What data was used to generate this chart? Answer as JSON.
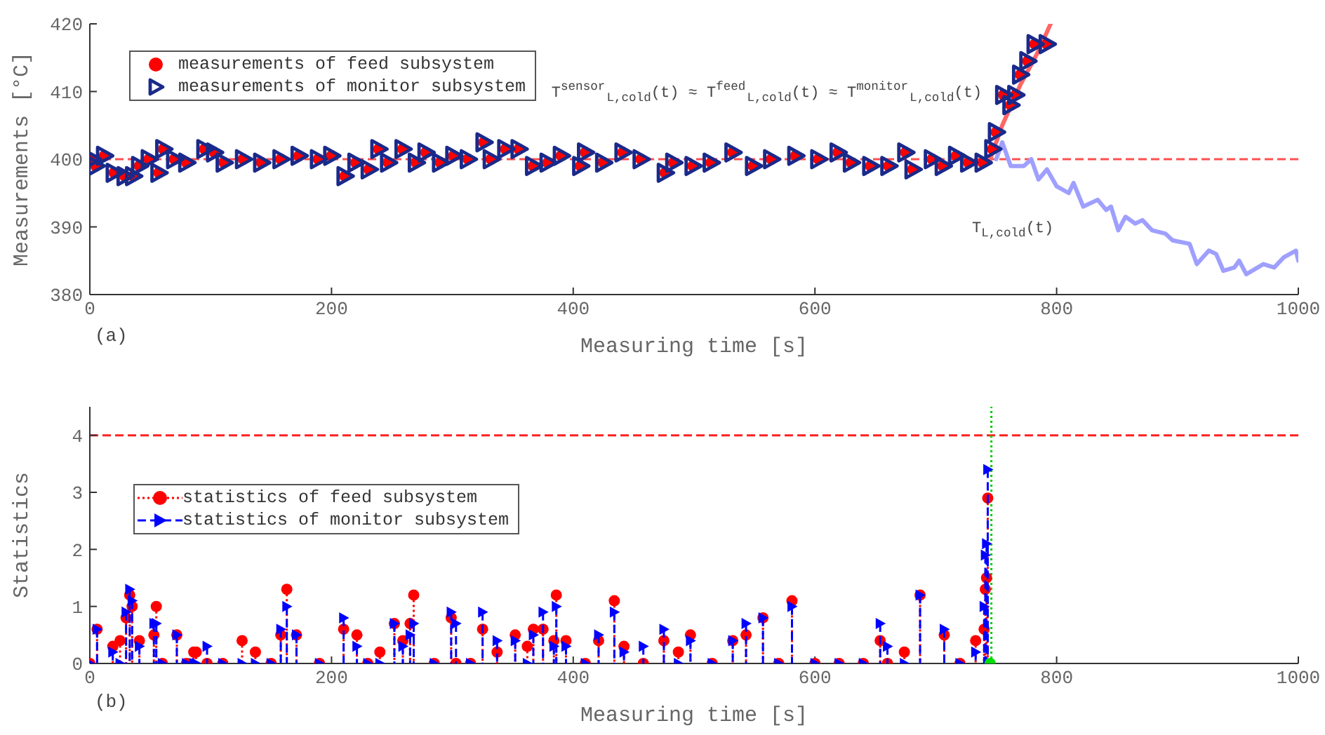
{
  "chart_data": [
    {
      "type": "scatter",
      "xlabel": "Measuring time [s]",
      "ylabel": "Measurements [°C]",
      "xlim": [
        0,
        1000
      ],
      "ylim": [
        380,
        420
      ],
      "xticks": [
        0,
        200,
        400,
        600,
        800,
        1000
      ],
      "yticks": [
        380,
        390,
        400,
        410,
        420
      ],
      "legend": "top left",
      "x": [
        2,
        5,
        12,
        20,
        29,
        36,
        41,
        49,
        57,
        61,
        70,
        80,
        95,
        103,
        111,
        127,
        142,
        158,
        173,
        189,
        200,
        211,
        220,
        231,
        239,
        247,
        259,
        270,
        278,
        290,
        301,
        313,
        326,
        332,
        344,
        355,
        367,
        379,
        390,
        406,
        410,
        425,
        441,
        456,
        476,
        483,
        499,
        514,
        532,
        549,
        564,
        584,
        603,
        619,
        630,
        646,
        661,
        675,
        681,
        697,
        706,
        717,
        727,
        739,
        747,
        750,
        756,
        762,
        766,
        770,
        776,
        782,
        792
      ],
      "series": [
        {
          "type": "line",
          "color": "#ff6666",
          "x": [
            745,
            755,
            770,
            785,
            795
          ],
          "values": [
            400,
            405,
            411,
            416,
            420
          ]
        },
        {
          "type": "line",
          "color": "#9f9fff",
          "x": [
            750,
            755,
            762,
            773,
            779,
            785,
            792,
            800,
            810,
            814,
            822,
            834,
            841,
            845,
            851,
            857,
            865,
            871,
            879,
            890,
            896,
            910,
            916,
            926,
            932,
            938,
            947,
            951,
            957,
            971,
            980,
            988,
            998,
            1000
          ],
          "values": [
            400,
            402.5,
            399,
            399,
            400,
            397,
            398.5,
            396,
            395,
            396.5,
            393,
            394,
            392.5,
            393,
            389.5,
            391.5,
            390.5,
            391,
            389.5,
            389,
            388,
            387.5,
            384.5,
            386.5,
            386,
            383.5,
            384,
            385,
            383,
            384.5,
            384,
            385.5,
            386.5,
            385
          ]
        },
        {
          "name": "measurements of feed subsystem",
          "color": "#ff0000",
          "marker": "circle",
          "values": [
            400,
            399,
            400.5,
            398,
            397.5,
            397.5,
            399,
            400,
            398,
            401.5,
            400,
            399.5,
            401.5,
            401,
            399.5,
            400,
            399.5,
            400,
            400.5,
            400,
            400.5,
            397.5,
            399.5,
            398.5,
            401.5,
            399.5,
            401.5,
            399.5,
            401,
            399.5,
            400.5,
            400,
            402.5,
            400,
            401.5,
            401.5,
            399,
            399.5,
            400.5,
            399,
            401,
            399.5,
            401,
            400,
            398,
            399.5,
            399,
            399.5,
            401,
            399,
            400,
            400.5,
            400,
            401,
            399.5,
            399,
            399,
            401,
            398.5,
            400,
            399,
            400.5,
            399.5,
            399.5,
            401.5,
            404,
            409.5,
            408,
            409.5,
            412.5,
            414.5,
            417,
            417
          ]
        },
        {
          "name": "measurements of monitor subsystem",
          "color": "#1a2a8a",
          "marker": "triangle",
          "values": [
            400,
            399,
            400.5,
            398,
            397.5,
            397.5,
            399,
            400,
            398,
            401.5,
            400,
            399.5,
            401.5,
            401,
            399.5,
            400,
            399.5,
            400,
            400.5,
            400,
            400.5,
            397.5,
            399.5,
            398.5,
            401.5,
            399.5,
            401.5,
            399.5,
            401,
            399.5,
            400.5,
            400,
            402.5,
            400,
            401.5,
            401.5,
            399,
            399.5,
            400.5,
            399,
            401,
            399.5,
            401,
            400,
            398,
            399.5,
            399,
            399.5,
            401,
            399,
            400,
            400.5,
            400,
            401,
            399.5,
            399,
            399,
            401,
            398.5,
            400,
            399,
            400.5,
            399.5,
            399.5,
            401.5,
            404,
            409.5,
            408,
            409.5,
            412.5,
            414.5,
            417,
            417
          ]
        }
      ],
      "ref_lines": [
        {
          "axis": "y",
          "value": 400,
          "color": "#ff5050",
          "line_style": "dashed"
        }
      ],
      "annotations": [
        "T$^{sensor}$$_{L,cold}$(t) ≈ T$^{feed}$$_{L,cold}$(t) ≈ T$^{monitor}$$_{L,cold}$(t)",
        "T$_{L,cold}$(t)",
        "(a)"
      ]
    },
    {
      "type": "lollipop",
      "xlabel": "Measuring time [s]",
      "ylabel": "Statistics",
      "xlim": [
        0,
        1000
      ],
      "ylim": [
        0,
        4.5
      ],
      "xticks": [
        0,
        200,
        400,
        600,
        800,
        1000
      ],
      "yticks": [
        0,
        1,
        2,
        3,
        4
      ],
      "legend": "left",
      "x": [
        0,
        6,
        19,
        25,
        30,
        33,
        35,
        41,
        53,
        55,
        60,
        72,
        80,
        86,
        88,
        97,
        110,
        126,
        137,
        150,
        158,
        163,
        171,
        190,
        210,
        221,
        230,
        240,
        252,
        259,
        265,
        268,
        285,
        299,
        303,
        315,
        325,
        337,
        352,
        362,
        367,
        375,
        384,
        386,
        394,
        410,
        421,
        434,
        442,
        458,
        475,
        487,
        497,
        515,
        532,
        543,
        557,
        570,
        581,
        600,
        620,
        640,
        654,
        660,
        674,
        687,
        707,
        720,
        733,
        740,
        741,
        742,
        743
      ],
      "series": [
        {
          "name": "statistics of feed subsystem",
          "color": "#ff0000",
          "marker": "circle",
          "line_style": "dotted",
          "values": [
            0,
            0.6,
            0.3,
            0.4,
            0.8,
            1.2,
            1.0,
            0.4,
            0.5,
            1.0,
            0,
            0.5,
            0,
            0.2,
            0.2,
            0,
            0,
            0.4,
            0.2,
            0,
            0.5,
            1.3,
            0.5,
            0,
            0.6,
            0.5,
            0,
            0.2,
            0.7,
            0.4,
            0.7,
            1.2,
            0,
            0.8,
            0,
            0,
            0.6,
            0.2,
            0.5,
            0.3,
            0.6,
            0.6,
            0.4,
            1.2,
            0.4,
            0,
            0.4,
            1.1,
            0.3,
            0,
            0.4,
            0.2,
            0.5,
            0,
            0.4,
            0.5,
            0.8,
            0,
            1.1,
            0,
            0,
            0,
            0.4,
            0,
            0.2,
            1.2,
            0.5,
            0,
            0.4,
            0.6,
            1.3,
            1.5,
            2.9
          ]
        },
        {
          "name": "statistics of monitor subsystem",
          "color": "#0000ff",
          "marker": "triangle",
          "line_style": "dashed",
          "values": [
            0,
            0.6,
            0.2,
            0,
            0.9,
            1.3,
            1.1,
            0.3,
            0.7,
            0.7,
            0,
            0.5,
            0,
            0,
            0,
            0.3,
            0,
            0,
            0,
            0,
            0.6,
            1.0,
            0.5,
            0,
            0.8,
            0.3,
            0,
            0,
            0.7,
            0.3,
            0.5,
            0.7,
            0,
            0.9,
            0.7,
            0,
            0.9,
            0.4,
            0.4,
            0,
            0.5,
            0.9,
            0.3,
            1.0,
            0.3,
            0,
            0.5,
            0.9,
            0.2,
            0.3,
            0.6,
            0,
            0.4,
            0,
            0.4,
            0.7,
            0.8,
            0,
            1.0,
            0,
            0,
            0,
            0.7,
            0.3,
            0,
            1.2,
            0.6,
            0,
            0.2,
            1.0,
            1.9,
            2.1,
            3.4
          ]
        },
        {
          "type": "scatter",
          "color": "#00dd00",
          "marker": "circle",
          "x": [
            745
          ],
          "values": [
            0
          ]
        }
      ],
      "ref_lines": [
        {
          "axis": "y",
          "value": 4,
          "color": "#ff2020",
          "line_style": "dashed"
        },
        {
          "axis": "x",
          "value": 746,
          "color": "#00cc00",
          "line_style": "dotted"
        }
      ],
      "annotations": [
        "(b)"
      ]
    }
  ]
}
